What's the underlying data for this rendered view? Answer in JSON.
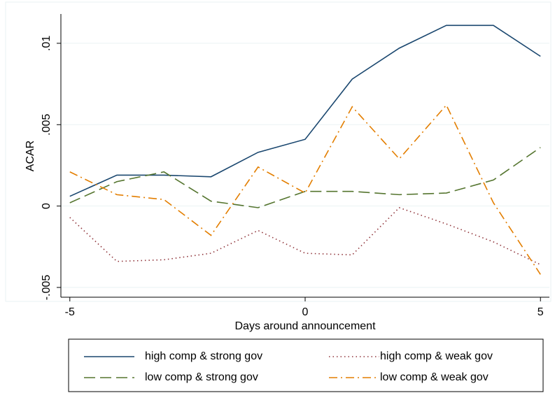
{
  "chart_data": {
    "type": "line",
    "xlabel": "Days around announcement",
    "ylabel": "ACAR",
    "x": [
      -5,
      -4,
      -3,
      -2,
      -1,
      0,
      1,
      2,
      3,
      4,
      5
    ],
    "series": [
      {
        "name": "high comp & strong gov",
        "color": "#1a476f",
        "style": "solid",
        "values": [
          0.0006,
          0.0019,
          0.0019,
          0.0018,
          0.0033,
          0.0041,
          0.0078,
          0.0097,
          0.0111,
          0.0111,
          0.0092
        ]
      },
      {
        "name": "high comp & weak gov",
        "color": "#90353b",
        "style": "dot",
        "values": [
          -0.0007,
          -0.0034,
          -0.0033,
          -0.0029,
          -0.0015,
          -0.0029,
          -0.003,
          -0.0001,
          -0.0011,
          -0.0022,
          -0.0036
        ]
      },
      {
        "name": "low comp & strong gov",
        "color": "#55752f",
        "style": "dash",
        "values": [
          0.0002,
          0.0015,
          0.0021,
          0.0003,
          -0.0001,
          0.0009,
          0.0009,
          0.0007,
          0.0008,
          0.0016,
          0.0036
        ]
      },
      {
        "name": "low comp & weak gov",
        "color": "#e37e00",
        "style": "dashdot",
        "values": [
          0.0021,
          0.0007,
          0.0004,
          -0.0018,
          0.0024,
          0.0008,
          0.0061,
          0.0029,
          0.0062,
          0.0002,
          -0.0042
        ]
      }
    ],
    "xlim": [
      -5.19,
      5.19
    ],
    "xticks": [
      -5,
      0,
      5
    ],
    "ylim": [
      -0.0056,
      0.0118
    ],
    "yticks": [
      {
        "value": -0.005,
        "label": "-.005"
      },
      0,
      {
        "value": 0.005,
        "label": ".005"
      },
      {
        "value": 0.01,
        "label": ".01"
      }
    ],
    "grid": true,
    "legend": "bottom"
  }
}
